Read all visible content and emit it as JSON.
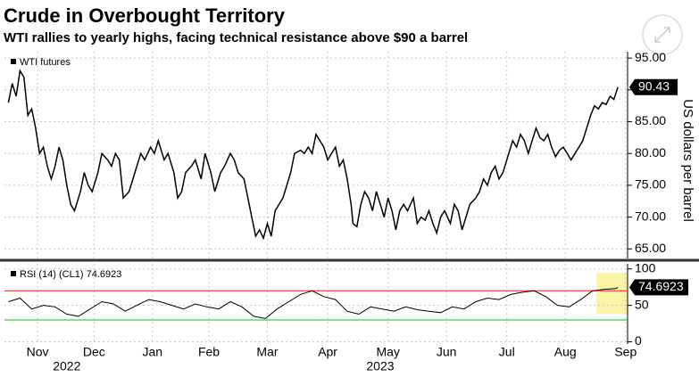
{
  "chart_data": [
    {
      "type": "line",
      "title": "Crude in Overbought Territory",
      "subtitle": "WTI rallies to yearly highs, facing technical resistance above $90 a barrel",
      "ylabel": "US dollars per barrel",
      "ylim": [
        63.5,
        96
      ],
      "yticks": [
        {
          "value": 65,
          "label": "65.00"
        },
        {
          "value": 70,
          "label": "70.00"
        },
        {
          "value": 75,
          "label": "75.00"
        },
        {
          "value": 80,
          "label": "80.00"
        },
        {
          "value": 85,
          "label": "85.00"
        },
        {
          "value": 90,
          "label": "90.00"
        },
        {
          "value": 95,
          "label": "95.00"
        }
      ],
      "xlim": [
        -2,
        318
      ],
      "xticks": [
        15,
        44,
        74,
        103,
        133,
        164,
        195,
        225,
        256,
        286,
        317
      ],
      "grid": true,
      "legend": "top-left",
      "last_value_line": {
        "color": "#f4f08a"
      },
      "series": [
        {
          "name": "WTI futures",
          "color": "#000000",
          "x": [
            0,
            2,
            4,
            6,
            8,
            10,
            12,
            14,
            16,
            18,
            20,
            22,
            24,
            26,
            28,
            30,
            32,
            34,
            37,
            39,
            41,
            43,
            46,
            48,
            51,
            53,
            55,
            57,
            59,
            62,
            65,
            68,
            70,
            73,
            75,
            77,
            80,
            82,
            85,
            87,
            89,
            91,
            94,
            96,
            99,
            101,
            104,
            106,
            109,
            111,
            114,
            116,
            118,
            121,
            123,
            125,
            127,
            129,
            131,
            133,
            135,
            137,
            139,
            141,
            143,
            145,
            147,
            150,
            152,
            154,
            156,
            158,
            160,
            162,
            164,
            166,
            168,
            170,
            172,
            174,
            176,
            177,
            179,
            181,
            183,
            185,
            187,
            189,
            191,
            193,
            195,
            197,
            199,
            201,
            203,
            205,
            208,
            210,
            212,
            214,
            216,
            218,
            220,
            222,
            224,
            227,
            229,
            231,
            233,
            235,
            237,
            240,
            242,
            244,
            246,
            248,
            250,
            252,
            254,
            257,
            259,
            261,
            263,
            265,
            267,
            269,
            271,
            273,
            275,
            277,
            279,
            281,
            283,
            285,
            287,
            289,
            291,
            293,
            295,
            297,
            299,
            301,
            303,
            305,
            307,
            309,
            311,
            313
          ],
          "values": [
            88,
            91,
            89,
            93,
            92,
            86,
            87,
            84,
            80,
            81,
            78,
            76,
            78,
            81,
            79,
            75,
            72,
            71,
            74,
            77,
            75,
            74,
            77,
            80,
            79,
            78,
            80,
            79,
            73,
            74,
            77,
            80,
            79,
            81,
            80,
            82,
            79,
            80,
            77,
            73,
            74,
            77,
            78,
            79,
            76,
            80,
            77,
            74,
            77,
            78,
            80,
            79,
            77,
            76,
            73,
            70,
            67,
            68,
            66.7,
            69,
            67,
            71,
            72,
            73,
            75,
            77,
            80,
            80.5,
            80,
            81,
            80,
            83,
            82,
            81,
            79,
            80,
            81,
            78,
            79,
            76,
            72,
            69,
            68.5,
            72,
            74,
            73,
            71,
            74,
            72,
            70,
            73,
            71,
            68,
            71,
            72,
            71,
            73,
            69,
            70,
            69.5,
            71,
            69,
            67.5,
            70,
            71,
            69,
            72,
            71,
            68,
            70,
            72,
            73,
            74,
            76,
            75,
            77,
            78,
            76,
            77,
            80,
            82,
            81,
            83,
            82,
            80,
            82,
            84,
            82.5,
            82,
            83,
            81,
            79.5,
            80.5,
            81,
            80,
            79,
            80,
            81,
            82,
            84,
            86,
            87.5,
            87,
            88,
            87.7,
            89,
            88.5,
            90.43
          ]
        }
      ]
    },
    {
      "type": "line",
      "ylim": [
        -3,
        107
      ],
      "yticks": [
        0,
        50,
        100
      ],
      "xlim": [
        -2,
        318
      ],
      "xticks": [
        {
          "value": 15,
          "label": "Nov"
        },
        {
          "value": 44,
          "label": "Dec"
        },
        {
          "value": 74,
          "label": "Jan"
        },
        {
          "value": 103,
          "label": "Feb"
        },
        {
          "value": 133,
          "label": "Mar"
        },
        {
          "value": 164,
          "label": "Apr"
        },
        {
          "value": 195,
          "label": "May"
        },
        {
          "value": 225,
          "label": "Jun"
        },
        {
          "value": 256,
          "label": "Jul"
        },
        {
          "value": 286,
          "label": "Aug"
        },
        {
          "value": 317,
          "label": "Sep"
        }
      ],
      "year_labels": [
        {
          "value": 30,
          "label": "2022"
        },
        {
          "value": 191,
          "label": "2023"
        }
      ],
      "grid": true,
      "legend": "top-left",
      "hlines": [
        {
          "value": 70,
          "color": "#e8473f"
        },
        {
          "value": 30,
          "color": "#3ccf3c"
        }
      ],
      "highlight": {
        "xlim": [
          302,
          318
        ],
        "color": "#fbf4a6"
      },
      "series": [
        {
          "name": "RSI (14) (CL1) 74.6923",
          "color": "#000000",
          "x": [
            0,
            6,
            12,
            18,
            24,
            30,
            36,
            42,
            48,
            54,
            60,
            66,
            72,
            78,
            84,
            90,
            96,
            102,
            108,
            114,
            120,
            126,
            132,
            138,
            144,
            150,
            156,
            162,
            168,
            174,
            180,
            186,
            192,
            198,
            204,
            210,
            216,
            222,
            228,
            234,
            240,
            246,
            252,
            258,
            264,
            270,
            276,
            282,
            288,
            294,
            300,
            306,
            312,
            313
          ],
          "values": [
            55,
            60,
            45,
            50,
            48,
            38,
            35,
            45,
            55,
            52,
            42,
            50,
            58,
            55,
            50,
            45,
            52,
            48,
            45,
            55,
            48,
            35,
            32,
            45,
            55,
            65,
            70,
            62,
            58,
            42,
            38,
            48,
            45,
            42,
            48,
            44,
            42,
            40,
            48,
            45,
            55,
            60,
            58,
            65,
            68,
            70,
            62,
            50,
            48,
            58,
            70,
            72,
            73,
            74.6923
          ]
        }
      ]
    }
  ]
}
